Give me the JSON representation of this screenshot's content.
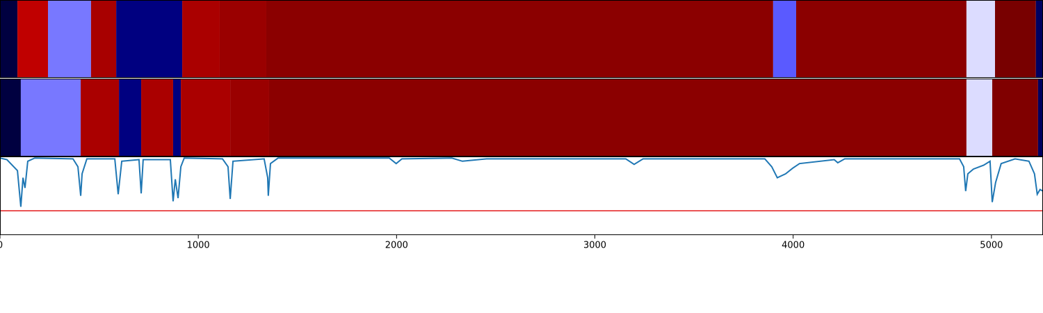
{
  "chart_data": [
    {
      "type": "band",
      "xlim": [
        0,
        5260
      ],
      "segments": [
        {
          "start": 0,
          "end": 88,
          "color": "#000040"
        },
        {
          "start": 88,
          "end": 242,
          "color": "#c00000"
        },
        {
          "start": 242,
          "end": 459,
          "color": "#7878ff"
        },
        {
          "start": 459,
          "end": 586,
          "color": "#a80000"
        },
        {
          "start": 586,
          "end": 919,
          "color": "#000080"
        },
        {
          "start": 919,
          "end": 1108,
          "color": "#aa0000"
        },
        {
          "start": 1108,
          "end": 1343,
          "color": "#9a0000"
        },
        {
          "start": 1343,
          "end": 3899,
          "color": "#8b0000"
        },
        {
          "start": 3899,
          "end": 4015,
          "color": "#5a5aff"
        },
        {
          "start": 4015,
          "end": 4874,
          "color": "#8b0000"
        },
        {
          "start": 4874,
          "end": 5018,
          "color": "#dcdcff"
        },
        {
          "start": 5018,
          "end": 5224,
          "color": "#780000"
        },
        {
          "start": 5224,
          "end": 5260,
          "color": "#000060"
        }
      ]
    },
    {
      "type": "band",
      "xlim": [
        0,
        5260
      ],
      "segments": [
        {
          "start": 0,
          "end": 105,
          "color": "#000040"
        },
        {
          "start": 105,
          "end": 407,
          "color": "#7878ff"
        },
        {
          "start": 407,
          "end": 600,
          "color": "#aa0000"
        },
        {
          "start": 600,
          "end": 712,
          "color": "#000080"
        },
        {
          "start": 712,
          "end": 873,
          "color": "#aa0000"
        },
        {
          "start": 873,
          "end": 912,
          "color": "#000080"
        },
        {
          "start": 912,
          "end": 1161,
          "color": "#aa0000"
        },
        {
          "start": 1161,
          "end": 1357,
          "color": "#9a0000"
        },
        {
          "start": 1357,
          "end": 4874,
          "color": "#8b0000"
        },
        {
          "start": 4874,
          "end": 5004,
          "color": "#dcdcff"
        },
        {
          "start": 5004,
          "end": 5235,
          "color": "#800000"
        },
        {
          "start": 5235,
          "end": 5260,
          "color": "#000060"
        }
      ]
    },
    {
      "type": "line",
      "xlim": [
        0,
        5260
      ],
      "ylim": [
        0,
        1
      ],
      "xticks": [
        0,
        1000,
        2000,
        3000,
        4000,
        5000
      ],
      "threshold": 0.31,
      "threshold_color": "#e41a1c",
      "x": [
        0,
        35,
        88,
        105,
        116,
        126,
        140,
        175,
        368,
        393,
        407,
        414,
        438,
        579,
        596,
        614,
        701,
        712,
        722,
        859,
        873,
        884,
        898,
        912,
        929,
        1122,
        1150,
        1161,
        1175,
        1332,
        1350,
        1353,
        1364,
        1402,
        1963,
        1998,
        2027,
        2279,
        2332,
        2454,
        3156,
        3198,
        3243,
        3857,
        3892,
        3920,
        3962,
        3997,
        4032,
        4207,
        4225,
        4260,
        4839,
        4860,
        4870,
        4881,
        4909,
        4961,
        4993,
        5004,
        5021,
        5049,
        5119,
        5189,
        5217,
        5231,
        5245,
        5260
      ],
      "series": [
        {
          "color": "#1f77b4",
          "values": [
            0.98,
            0.96,
            0.82,
            0.36,
            0.73,
            0.6,
            0.94,
            0.98,
            0.97,
            0.87,
            0.5,
            0.78,
            0.97,
            0.97,
            0.52,
            0.94,
            0.96,
            0.53,
            0.96,
            0.96,
            0.43,
            0.71,
            0.47,
            0.87,
            0.98,
            0.97,
            0.87,
            0.46,
            0.94,
            0.97,
            0.73,
            0.5,
            0.91,
            0.98,
            0.98,
            0.91,
            0.97,
            0.98,
            0.94,
            0.97,
            0.97,
            0.9,
            0.97,
            0.97,
            0.87,
            0.73,
            0.78,
            0.85,
            0.91,
            0.96,
            0.92,
            0.97,
            0.97,
            0.87,
            0.56,
            0.78,
            0.84,
            0.89,
            0.94,
            0.42,
            0.67,
            0.91,
            0.97,
            0.94,
            0.78,
            0.52,
            0.58,
            0.56
          ]
        }
      ]
    }
  ]
}
